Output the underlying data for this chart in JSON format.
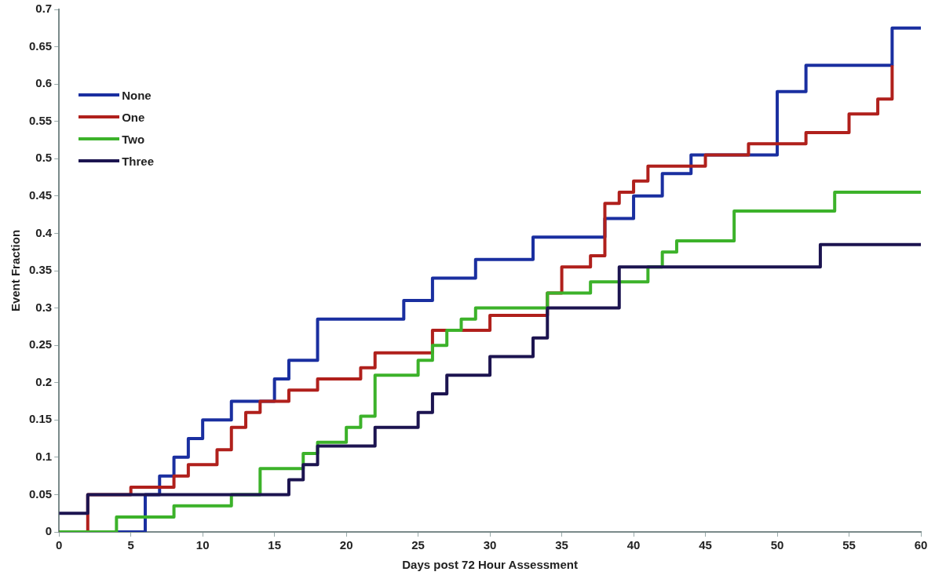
{
  "chart_data": {
    "type": "step",
    "xlabel": "Days post 72 Hour Assessment",
    "ylabel": "Event Fraction",
    "xlim": [
      0,
      60
    ],
    "xticks": [
      0,
      5,
      10,
      15,
      20,
      25,
      30,
      35,
      40,
      45,
      50,
      55,
      60
    ],
    "ylim": [
      0,
      0.7
    ],
    "yticks": [
      0,
      0.05,
      0.1,
      0.15,
      0.2,
      0.25,
      0.3,
      0.35,
      0.4,
      0.45,
      0.5,
      0.55,
      0.6,
      0.65,
      0.7
    ],
    "grid": false,
    "legend": "top left",
    "marker": "none",
    "line_style": "solid",
    "series": [
      {
        "name": "None",
        "color": "#1a2fa0",
        "x": [
          0,
          6,
          7,
          8,
          9,
          10,
          12,
          15,
          16,
          18,
          24,
          26,
          29,
          33,
          38,
          40,
          42,
          44,
          50,
          52,
          58,
          60
        ],
        "values": [
          0,
          0.05,
          0.075,
          0.1,
          0.125,
          0.15,
          0.175,
          0.205,
          0.23,
          0.285,
          0.31,
          0.34,
          0.365,
          0.395,
          0.42,
          0.45,
          0.48,
          0.505,
          0.59,
          0.625,
          0.675,
          0.675
        ]
      },
      {
        "name": "One",
        "color": "#b0201c",
        "x": [
          0,
          2,
          5,
          8,
          9,
          11,
          12,
          13,
          14,
          16,
          18,
          21,
          22,
          26,
          30,
          34,
          35,
          37,
          38,
          39,
          40,
          41,
          45,
          48,
          52,
          55,
          57,
          58
        ],
        "values": [
          0,
          0.05,
          0.06,
          0.075,
          0.09,
          0.11,
          0.14,
          0.16,
          0.175,
          0.19,
          0.205,
          0.22,
          0.24,
          0.27,
          0.29,
          0.32,
          0.355,
          0.37,
          0.44,
          0.455,
          0.47,
          0.49,
          0.505,
          0.52,
          0.535,
          0.56,
          0.58,
          0.625
        ]
      },
      {
        "name": "Two",
        "color": "#3cb22a",
        "x": [
          0,
          4,
          8,
          12,
          14,
          17,
          18,
          20,
          21,
          22,
          25,
          26,
          27,
          28,
          29,
          34,
          37,
          41,
          42,
          43,
          47,
          54,
          60
        ],
        "values": [
          0,
          0.02,
          0.035,
          0.05,
          0.085,
          0.105,
          0.12,
          0.14,
          0.155,
          0.21,
          0.23,
          0.25,
          0.27,
          0.285,
          0.3,
          0.32,
          0.335,
          0.355,
          0.375,
          0.39,
          0.43,
          0.455,
          0.455
        ]
      },
      {
        "name": "Three",
        "color": "#1c1450",
        "x": [
          0,
          2,
          16,
          17,
          18,
          22,
          25,
          26,
          27,
          30,
          33,
          34,
          39,
          53,
          60
        ],
        "values": [
          0.025,
          0.05,
          0.07,
          0.09,
          0.115,
          0.14,
          0.16,
          0.185,
          0.21,
          0.235,
          0.26,
          0.3,
          0.355,
          0.385,
          0.385
        ]
      }
    ]
  }
}
